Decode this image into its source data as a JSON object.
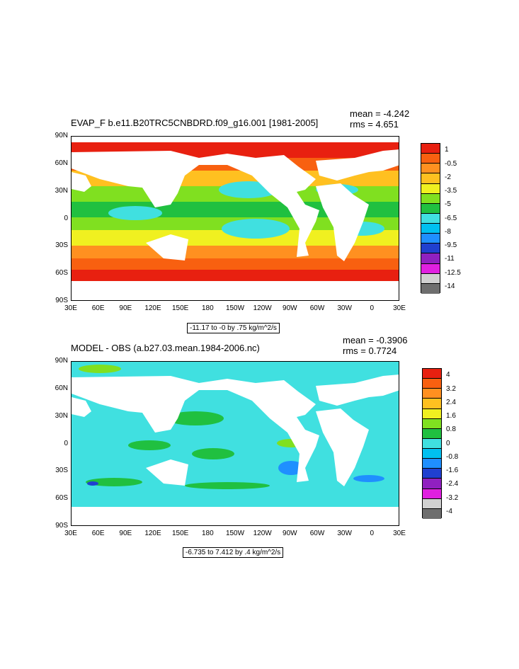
{
  "panels": [
    {
      "title": "EVAP_F b.e11.B20TRC5CNBDRD.f09_g16.001 [1981-2005]",
      "mean": "mean = -4.242",
      "rms": "rms = 4.651",
      "info": "-11.17 to -0 by .75 kg/m^2/s",
      "colors": [
        "#6e6e6e",
        "#d0d0d0",
        "#e020e0",
        "#9020c0",
        "#2040d0",
        "#1f8fff",
        "#00c0f0",
        "#40e0e0",
        "#20c040",
        "#80e020",
        "#f0f020",
        "#ffc020",
        "#ff9020",
        "#f86010",
        "#e82010"
      ],
      "labels": [
        "1",
        "-0.5",
        "-2",
        "-3.5",
        "-5",
        "-6.5",
        "-8",
        "-9.5",
        "-11",
        "-12.5",
        "-14"
      ]
    },
    {
      "title": "MODEL - OBS (a.b27.03.mean.1984-2006.nc)",
      "mean": "mean = -0.3906",
      "rms": "rms = 0.7724",
      "info": "-6.735 to 7.412 by .4 kg/m^2/s",
      "colors": [
        "#6e6e6e",
        "#d0d0d0",
        "#e020e0",
        "#9020c0",
        "#2040d0",
        "#1f8fff",
        "#00c0f0",
        "#40e0e0",
        "#20c040",
        "#80e020",
        "#f0f020",
        "#ffc020",
        "#ff9020",
        "#f86010",
        "#e82010"
      ],
      "labels": [
        "4",
        "3.2",
        "2.4",
        "1.6",
        "0.8",
        "0",
        "-0.8",
        "-1.6",
        "-2.4",
        "-3.2",
        "-4"
      ]
    }
  ],
  "lat_labels": [
    "90N",
    "60N",
    "30N",
    "0",
    "30S",
    "60S",
    "90S"
  ],
  "lon_labels": [
    "30E",
    "60E",
    "90E",
    "120E",
    "150E",
    "180",
    "150W",
    "120W",
    "90W",
    "60W",
    "30W",
    "0",
    "30E"
  ]
}
